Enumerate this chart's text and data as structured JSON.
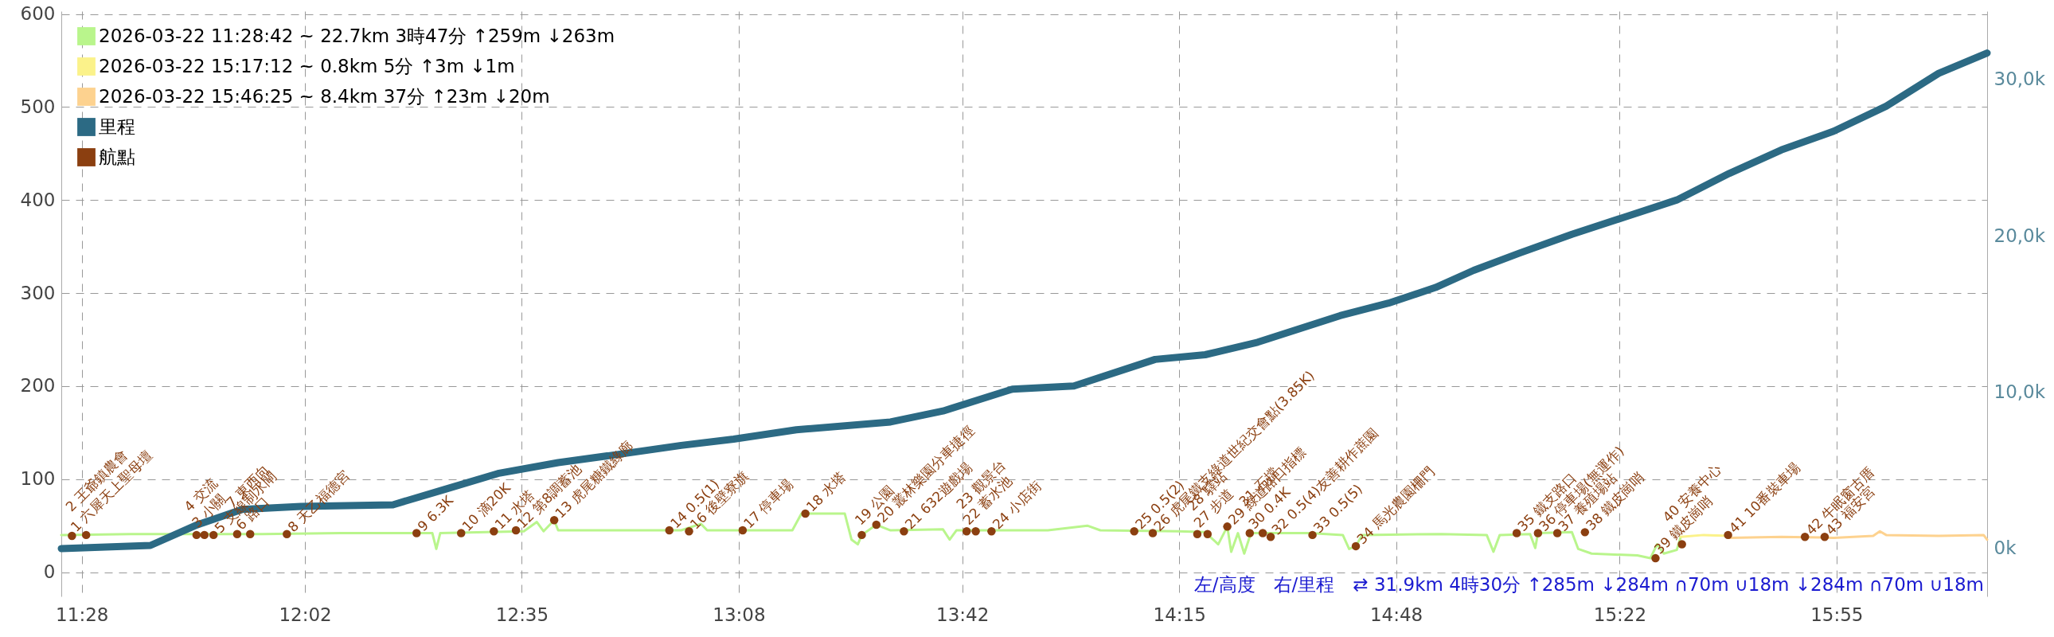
{
  "chart_data": {
    "type": "line",
    "xlim": [
      11.415,
      16.299
    ],
    "xticks": [
      {
        "value": 11.467,
        "label": "11:28"
      },
      {
        "value": 12.033,
        "label": "12:02"
      },
      {
        "value": 12.583,
        "label": "12:35"
      },
      {
        "value": 13.133,
        "label": "13:08"
      },
      {
        "value": 13.7,
        "label": "13:42"
      },
      {
        "value": 14.25,
        "label": "14:15"
      },
      {
        "value": 14.8,
        "label": "14:48"
      },
      {
        "value": 15.367,
        "label": "15:22"
      },
      {
        "value": 15.917,
        "label": "15:55"
      }
    ],
    "ylim": [
      -26,
      603
    ],
    "yticks": [
      0,
      100,
      200,
      300,
      400,
      500,
      600
    ],
    "y2lim": [
      -3060,
      34380
    ],
    "y2ticks": [
      {
        "value": 0,
        "label": "0k"
      },
      {
        "value": 10000,
        "label": "10,0k"
      },
      {
        "value": 20000,
        "label": "20,0k"
      },
      {
        "value": 30000,
        "label": "30,0k"
      }
    ],
    "grid": true,
    "legend": "top left",
    "annotations": [
      "左/高度　右/里程　⇄ 31.9km 4時30分 ↑285m ↓284m ∩70m ∪18m ↓284m ∩70m ∪18m",
      {
        "text": "1 六犀天上聖母壇",
        "x": 11.442,
        "y": 39
      },
      {
        "text": "2 王爺鎮農會",
        "x": 11.478,
        "y": 40
      },
      {
        "text": "3 小關",
        "x": 11.758,
        "y": 40
      },
      {
        "text": "4 交流",
        "x": 11.778,
        "y": 40
      },
      {
        "text": "5 支線制水閘",
        "x": 11.801,
        "y": 40
      },
      {
        "text": "6 路口",
        "x": 11.861,
        "y": 41
      },
      {
        "text": "7 東西向",
        "x": 11.894,
        "y": 41
      },
      {
        "text": "8 天乙福德宮",
        "x": 11.987,
        "y": 41
      },
      {
        "text": "9 6.3K",
        "x": 12.316,
        "y": 42
      },
      {
        "text": "10 滴20K",
        "x": 12.429,
        "y": 42
      },
      {
        "text": "11 水塔",
        "x": 12.512,
        "y": 44
      },
      {
        "text": "12 第8調蓄池",
        "x": 12.568,
        "y": 45
      },
      {
        "text": "13 虎尾糖鐵綠廊",
        "x": 12.665,
        "y": 56
      },
      {
        "text": "14 0.5(1)",
        "x": 12.957,
        "y": 45
      },
      {
        "text": "16 後壁寮旗",
        "x": 13.007,
        "y": 44
      },
      {
        "text": "17 停車場",
        "x": 13.143,
        "y": 45
      },
      {
        "text": "18 水塔",
        "x": 13.302,
        "y": 63
      },
      {
        "text": "19 公園",
        "x": 13.445,
        "y": 40
      },
      {
        "text": "20 叢林樂園分車捷徑",
        "x": 13.482,
        "y": 51
      },
      {
        "text": "21 632遊戲場",
        "x": 13.552,
        "y": 44
      },
      {
        "text": "22 蓄水池",
        "x": 13.711,
        "y": 44
      },
      {
        "text": "23 觀景台",
        "x": 13.734,
        "y": 44
      },
      {
        "text": "24 小店街",
        "x": 13.774,
        "y": 44
      },
      {
        "text": "25 0.5(2)",
        "x": 14.136,
        "y": 44
      },
      {
        "text": "26 虎尾鐵支綠道世紀交會點(3.85K)",
        "x": 14.183,
        "y": 42
      },
      {
        "text": "27 步道",
        "x": 14.296,
        "y": 41
      },
      {
        "text": "28 驛站",
        "x": 14.322,
        "y": 41
      },
      {
        "text": "29 綠道路口指標",
        "x": 14.372,
        "y": 49
      },
      {
        "text": "30 0.4K",
        "x": 14.429,
        "y": 42
      },
      {
        "text": "31 石擋",
        "x": 14.462,
        "y": 42
      },
      {
        "text": "32 0.5(4)友善耕作蔗園",
        "x": 14.482,
        "y": 38
      },
      {
        "text": "33 0.5(5)",
        "x": 14.588,
        "y": 40
      },
      {
        "text": "34 馬光農園柵門",
        "x": 14.698,
        "y": 28
      },
      {
        "text": "35 鐵支路口",
        "x": 15.106,
        "y": 42
      },
      {
        "text": "36 停車場(無運作)",
        "x": 15.16,
        "y": 42
      },
      {
        "text": "37 養殖場站",
        "x": 15.209,
        "y": 42
      },
      {
        "text": "38 鐵皮崗哨",
        "x": 15.279,
        "y": 43
      },
      {
        "text": "39 鐵皮崗哨",
        "x": 15.458,
        "y": 15
      },
      {
        "text": "40 安養中心",
        "x": 15.525,
        "y": 30
      },
      {
        "text": "41 10番裝車場",
        "x": 15.642,
        "y": 40
      },
      {
        "text": "42 牛眠窗古厝",
        "x": 15.837,
        "y": 38
      },
      {
        "text": "43 福安宮",
        "x": 15.887,
        "y": 38
      }
    ],
    "series": [
      {
        "name": "2026-03-22 11:28:42 ~ 22.7km 3時47分 ↑259m ↓263m",
        "color": "#b9f58c",
        "x": [
          11.415,
          11.591,
          11.758,
          11.924,
          12.123,
          12.356,
          12.366,
          12.376,
          12.588,
          12.621,
          12.638,
          12.665,
          12.675,
          12.721,
          12.987,
          13.037,
          13.053,
          13.269,
          13.292,
          13.402,
          13.419,
          13.435,
          13.445,
          13.482,
          13.518,
          13.651,
          13.668,
          13.685,
          13.917,
          14.017,
          14.05,
          14.249,
          14.316,
          14.349,
          14.372,
          14.382,
          14.399,
          14.415,
          14.432,
          14.582,
          14.665,
          14.681,
          14.698,
          14.714,
          14.914,
          15.03,
          15.047,
          15.063,
          15.14,
          15.153,
          15.16,
          15.246,
          15.262,
          15.296,
          15.412,
          15.445,
          15.462,
          15.479,
          15.512,
          15.522
        ],
        "values": [
          40,
          41,
          41,
          41,
          42,
          42,
          25,
          42,
          44,
          54,
          44,
          56,
          45,
          45,
          45,
          52,
          45,
          45,
          63,
          63,
          35,
          30,
          40,
          51,
          45,
          46,
          35,
          45,
          45,
          50,
          45,
          44,
          43,
          30,
          49,
          22,
          42,
          20,
          42,
          42,
          40,
          25,
          28,
          40,
          41,
          40,
          22,
          40,
          41,
          26,
          42,
          43,
          25,
          20,
          18,
          15,
          30,
          20,
          24,
          38
        ]
      },
      {
        "name": "2026-03-22 15:17:12 ~ 0.8km 5分 ↑3m ↓1m",
        "color": "#fbf28a",
        "x": [
          15.522,
          15.58,
          15.645
        ],
        "values": [
          38,
          40,
          39
        ]
      },
      {
        "name": "2026-03-22 15:46:25 ~ 8.4km 37分 ↑23m ↓20m",
        "color": "#fdd28f",
        "x": [
          15.645,
          15.777,
          15.91,
          16.01,
          16.027,
          16.043,
          16.176,
          16.29,
          16.299
        ],
        "values": [
          37,
          38,
          37,
          39,
          44,
          40,
          39,
          40,
          35
        ]
      },
      {
        "name": "里程",
        "axis": "y2",
        "color": "#2c6a84",
        "x": [
          11.415,
          11.641,
          11.758,
          11.874,
          12.023,
          12.256,
          12.389,
          12.522,
          12.675,
          12.821,
          12.987,
          13.12,
          13.279,
          13.518,
          13.651,
          13.827,
          13.983,
          14.189,
          14.316,
          14.449,
          14.658,
          14.781,
          14.9,
          14.997,
          15.113,
          15.246,
          15.379,
          15.512,
          15.645,
          15.777,
          15.91,
          16.043,
          16.176,
          16.299
        ],
        "values": [
          0,
          200,
          1500,
          2500,
          2700,
          2800,
          3800,
          4800,
          5500,
          6000,
          6600,
          7000,
          7600,
          8100,
          8800,
          10200,
          10400,
          12100,
          12400,
          13200,
          14900,
          15700,
          16700,
          17800,
          18900,
          20100,
          21200,
          22300,
          24000,
          25500,
          26700,
          28300,
          30400,
          31700
        ]
      },
      {
        "name": "航點",
        "type": "scatter",
        "color": "#8b3f10",
        "x": [
          11.442,
          11.478,
          11.758,
          11.778,
          11.801,
          11.861,
          11.894,
          11.987,
          12.316,
          12.429,
          12.512,
          12.568,
          12.665,
          12.957,
          13.007,
          13.143,
          13.302,
          13.445,
          13.482,
          13.552,
          13.711,
          13.734,
          13.774,
          14.136,
          14.183,
          14.296,
          14.322,
          14.372,
          14.429,
          14.462,
          14.482,
          14.588,
          14.698,
          15.106,
          15.16,
          15.209,
          15.279,
          15.458,
          15.525,
          15.642,
          15.837,
          15.887
        ],
        "values": [
          39,
          40,
          40,
          40,
          40,
          41,
          41,
          41,
          42,
          42,
          44,
          45,
          56,
          45,
          44,
          45,
          63,
          40,
          51,
          44,
          44,
          44,
          44,
          44,
          42,
          41,
          41,
          49,
          42,
          42,
          38,
          40,
          28,
          42,
          42,
          42,
          43,
          15,
          30,
          40,
          38,
          38
        ]
      }
    ]
  }
}
